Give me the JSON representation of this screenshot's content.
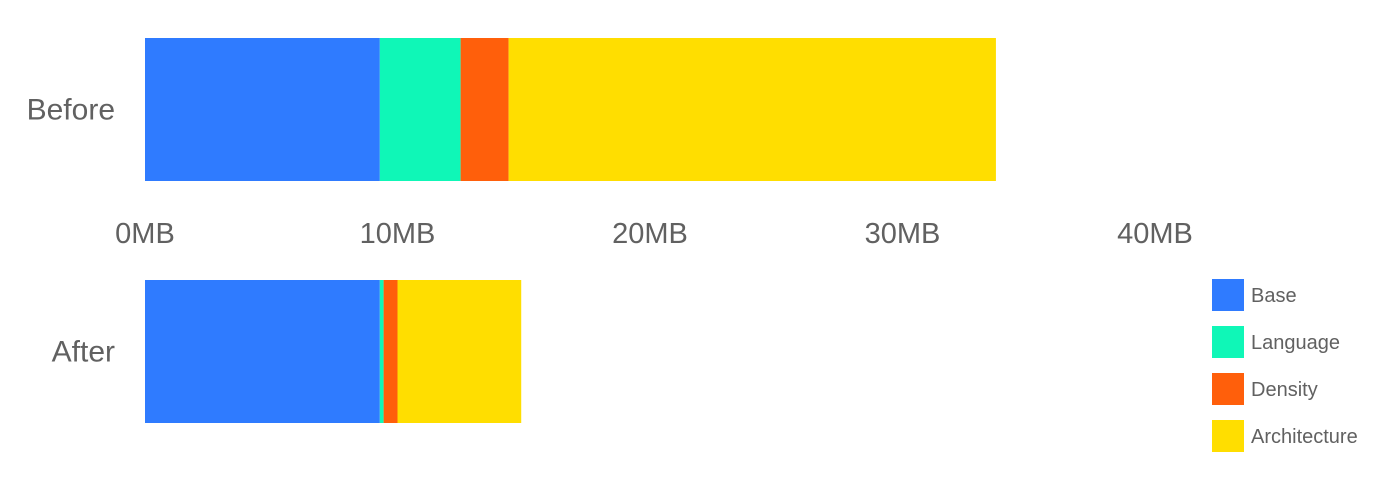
{
  "chart_data": {
    "type": "bar",
    "orientation": "horizontal",
    "stacked": true,
    "categories": [
      "Before",
      "After"
    ],
    "series": [
      {
        "name": "Base",
        "color": "#2F7BFF",
        "values": [
          9.3,
          9.3
        ]
      },
      {
        "name": "Language",
        "color": "#0FF7B7",
        "values": [
          3.2,
          0.15
        ]
      },
      {
        "name": "Density",
        "color": "#FF5F0B",
        "values": [
          1.9,
          0.55
        ]
      },
      {
        "name": "Architecture",
        "color": "#FFDE00",
        "values": [
          19.3,
          4.9
        ]
      }
    ],
    "xlim": [
      0,
      40
    ],
    "xticks": [
      0,
      10,
      20,
      30,
      40
    ],
    "xtick_labels": [
      "0MB",
      "10MB",
      "20MB",
      "30MB",
      "40MB"
    ],
    "title": "",
    "xlabel": "",
    "ylabel": "",
    "grid": false,
    "legend_position": "bottom-right"
  }
}
